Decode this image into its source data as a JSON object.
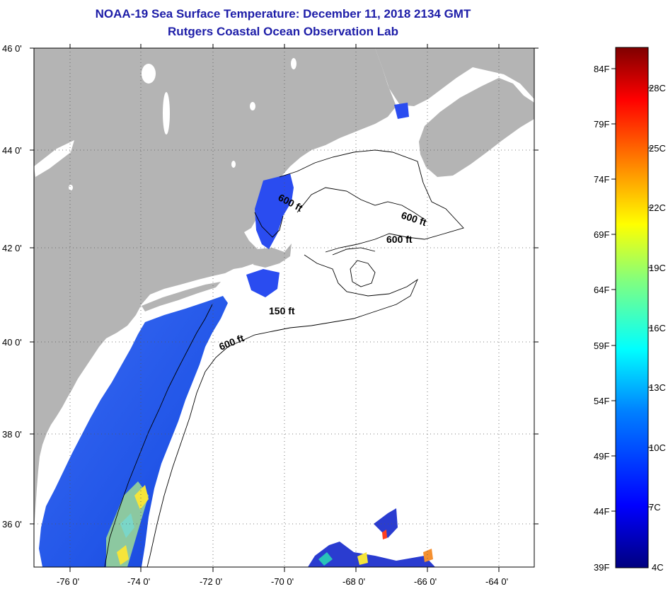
{
  "header": {
    "title": "NOAA-19 Sea Surface Temperature:  December 11, 2018 2134 GMT",
    "subtitle": "Rutgers Coastal Ocean Observation Lab"
  },
  "map": {
    "lat_ticks": [
      "46 0'",
      "44 0'",
      "42 0'",
      "40 0'",
      "38 0'",
      "36 0'"
    ],
    "lon_ticks": [
      "-76 0'",
      "-74 0'",
      "-72 0'",
      "-70 0'",
      "-68 0'",
      "-66 0'",
      "-64 0'"
    ],
    "contour_labels": [
      "600 ft",
      "600 ft",
      "600 ft",
      "150 ft",
      "600 ft"
    ],
    "colors": {
      "land": "#b4b4b4",
      "ocean_no_data": "#ffffff",
      "cold_water": "#2a4cf0"
    }
  },
  "colorbar": {
    "fahrenheit_labels": [
      "84F",
      "79F",
      "74F",
      "69F",
      "64F",
      "59F",
      "54F",
      "49F",
      "44F",
      "39F"
    ],
    "celsius_labels": [
      "28C",
      "25C",
      "22C",
      "19C",
      "16C",
      "13C",
      "10C",
      "7C",
      "4C"
    ],
    "gradient": [
      "#00007f",
      "#0000ff",
      "#0080ff",
      "#00ffff",
      "#80ff80",
      "#ffff00",
      "#ff8000",
      "#ff0000",
      "#7f0000"
    ]
  }
}
